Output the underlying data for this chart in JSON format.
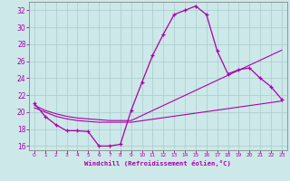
{
  "xlabel": "Windchill (Refroidissement éolien,°C)",
  "bg_color": "#cce8e8",
  "line_color": "#aa00aa",
  "grid_color": "#aacccc",
  "xlim": [
    -0.5,
    23.5
  ],
  "ylim": [
    15.5,
    33.0
  ],
  "xticks": [
    0,
    1,
    2,
    3,
    4,
    5,
    6,
    7,
    8,
    9,
    10,
    11,
    12,
    13,
    14,
    15,
    16,
    17,
    18,
    19,
    20,
    21,
    22,
    23
  ],
  "yticks": [
    16,
    18,
    20,
    22,
    24,
    26,
    28,
    30,
    32
  ],
  "series1_x": [
    0,
    1,
    2,
    3,
    4,
    5,
    6,
    7,
    8,
    9,
    10,
    11,
    12,
    13,
    14,
    15,
    16,
    17,
    18,
    19,
    20,
    21,
    22,
    23
  ],
  "series1_y": [
    21.0,
    19.5,
    18.5,
    17.8,
    17.8,
    17.7,
    16.0,
    16.0,
    16.2,
    20.2,
    23.5,
    26.7,
    29.2,
    31.5,
    32.0,
    32.5,
    31.5,
    27.2,
    24.5,
    25.0,
    25.2,
    24.0,
    23.0,
    21.5
  ],
  "series2_x": [
    0,
    1,
    2,
    3,
    4,
    5,
    6,
    7,
    8,
    9,
    23
  ],
  "series2_y": [
    20.8,
    20.2,
    19.8,
    19.5,
    19.3,
    19.2,
    19.1,
    19.0,
    19.0,
    19.0,
    27.3
  ],
  "series3_x": [
    0,
    1,
    2,
    3,
    4,
    5,
    6,
    7,
    8,
    9,
    23
  ],
  "series3_y": [
    20.5,
    20.0,
    19.5,
    19.2,
    19.0,
    18.9,
    18.8,
    18.8,
    18.8,
    18.8,
    21.3
  ]
}
